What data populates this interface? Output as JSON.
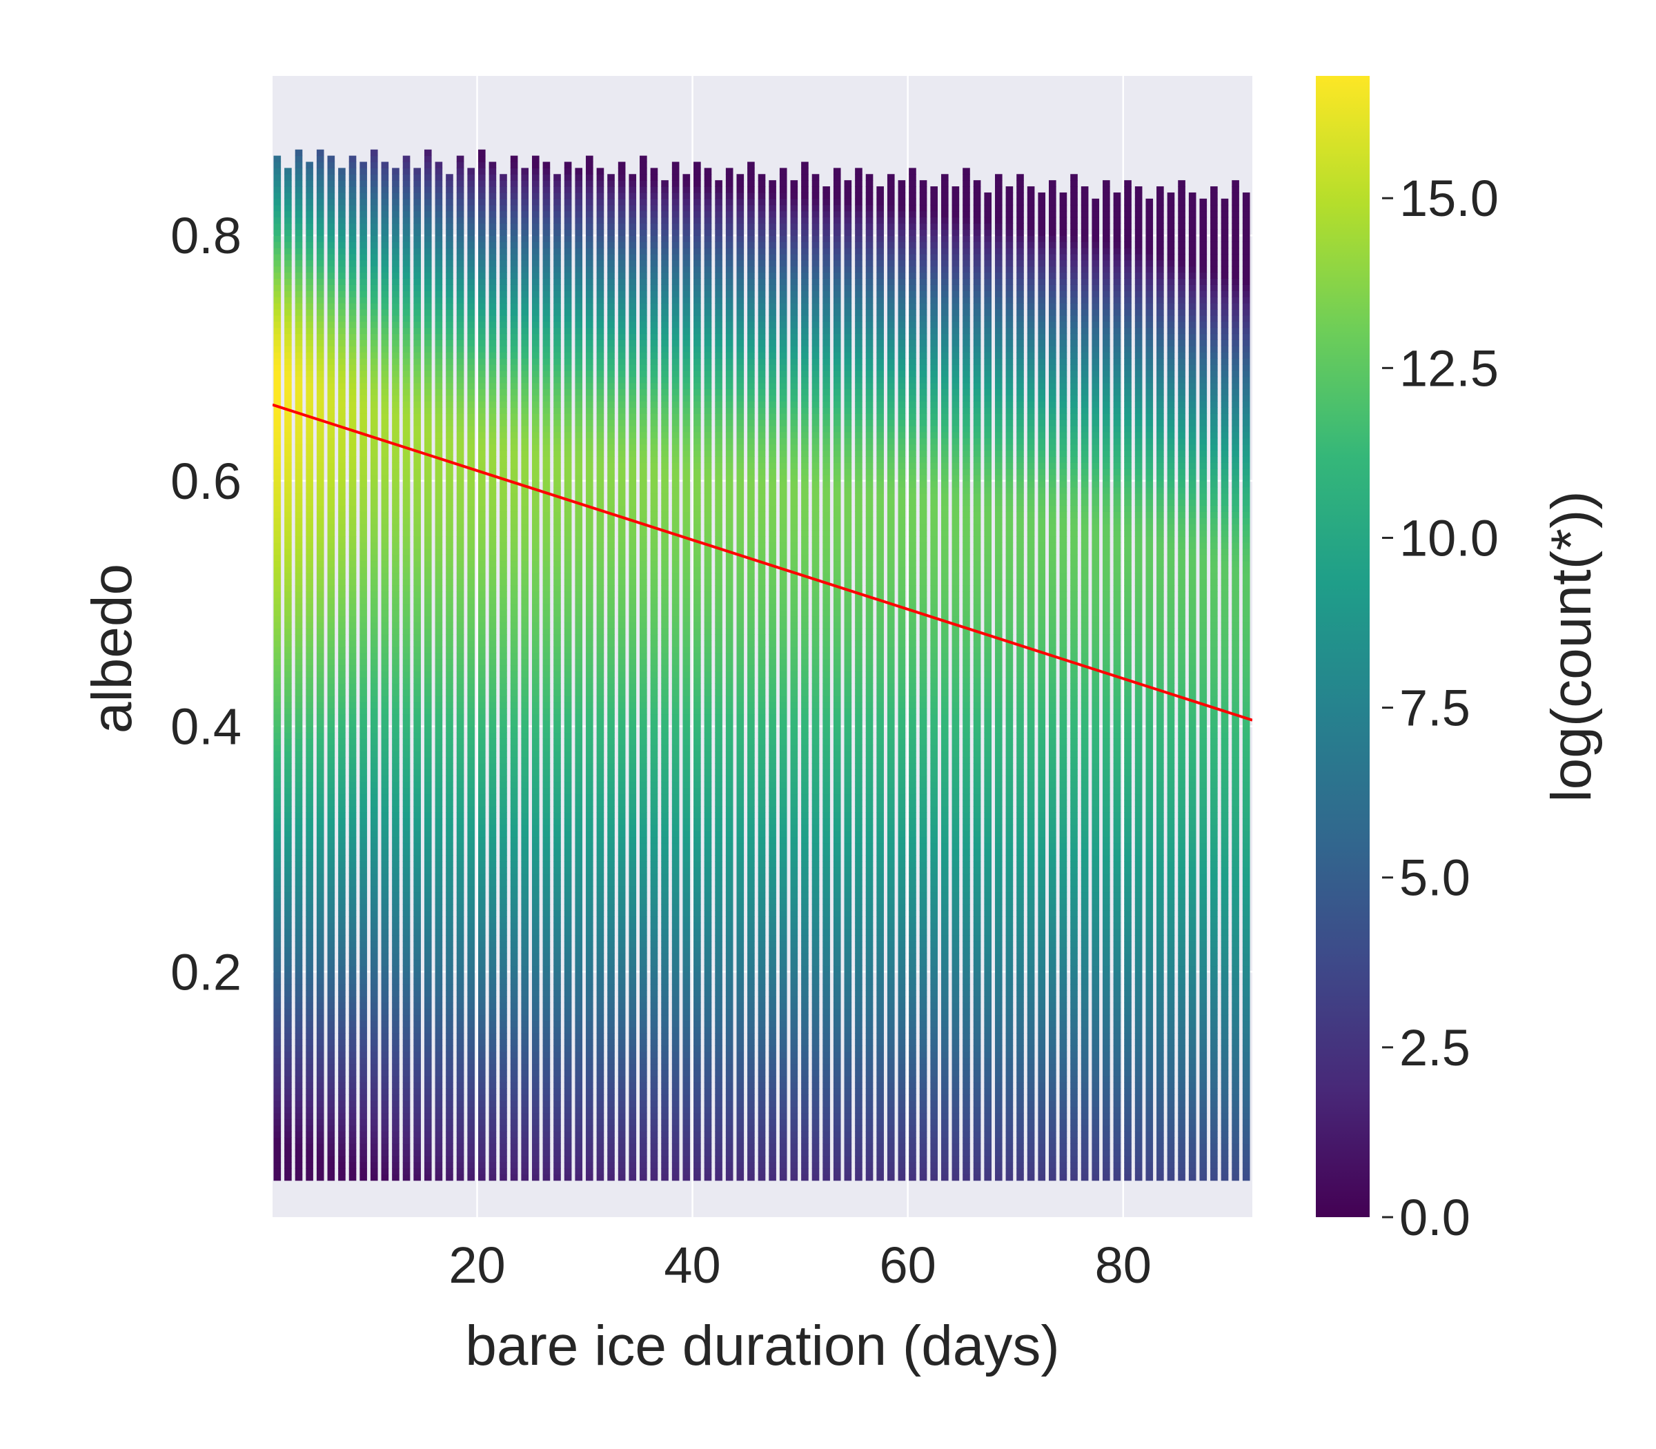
{
  "chart_data": {
    "type": "heatmap",
    "subtype": "2d-histogram-with-regression-line",
    "title": "",
    "xlabel": "bare ice duration (days)",
    "ylabel": "albedo",
    "xlim": [
      1,
      92
    ],
    "ylim": [
      0.0,
      0.93
    ],
    "x_ticks": [
      20,
      40,
      60,
      80
    ],
    "x_tick_labels": [
      "20",
      "40",
      "60",
      "80"
    ],
    "y_ticks": [
      0.2,
      0.4,
      0.6,
      0.8
    ],
    "y_tick_labels": [
      "0.2",
      "0.4",
      "0.6",
      "0.8"
    ],
    "grid": true,
    "day_range": [
      1,
      91
    ],
    "albedo_profile": {
      "peak_albedo": 0.63,
      "peak_albedo_by_day": [
        [
          1,
          0.68
        ],
        [
          20,
          0.62
        ],
        [
          40,
          0.6
        ],
        [
          60,
          0.58
        ],
        [
          80,
          0.55
        ],
        [
          91,
          0.52
        ]
      ],
      "peak_log_count_by_day": [
        [
          1,
          16.5
        ],
        [
          10,
          14.2
        ],
        [
          30,
          13.4
        ],
        [
          60,
          12.7
        ],
        [
          91,
          12.0
        ]
      ],
      "albedo_extent_by_day": [
        [
          1,
          0.03,
          0.87
        ],
        [
          40,
          0.03,
          0.86
        ],
        [
          91,
          0.03,
          0.84
        ]
      ]
    },
    "colorbar": {
      "label": "log(count(*))",
      "range": [
        0.0,
        16.8
      ],
      "ticks": [
        0.0,
        2.5,
        5.0,
        7.5,
        10.0,
        12.5,
        15.0
      ],
      "tick_labels": [
        "0.0",
        "2.5",
        "5.0",
        "7.5",
        "10.0",
        "12.5",
        "15.0"
      ],
      "colormap": "viridis",
      "colormap_stops": [
        "#440154",
        "#482878",
        "#3e4989",
        "#31688e",
        "#26828e",
        "#1f9e89",
        "#35b779",
        "#6ece58",
        "#b5de2b",
        "#fde725"
      ]
    },
    "regression_line": {
      "x": [
        1,
        92
      ],
      "y": [
        0.662,
        0.405
      ],
      "color": "#ff0000"
    },
    "background_color": "#eaeaf2",
    "grid_color": "#ffffff"
  }
}
